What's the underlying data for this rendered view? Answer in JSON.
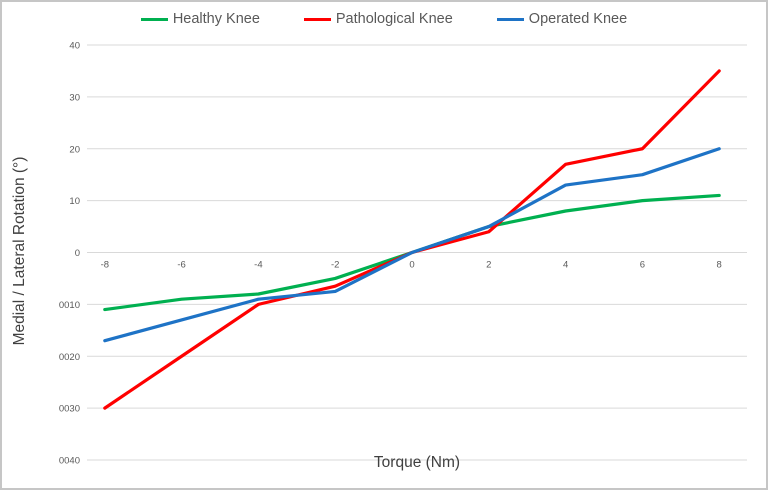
{
  "chart_data": {
    "type": "line",
    "title": "",
    "xlabel": "Torque (Nm)",
    "ylabel": "Medial / Lateral Rotation (°)",
    "x": [
      -8,
      -6,
      -4,
      -2,
      0,
      2,
      4,
      6,
      8
    ],
    "x_tick_labels": [
      "-8",
      "-6",
      "-4",
      "-2",
      "0",
      "2",
      "4",
      "6",
      "8"
    ],
    "y_ticks": [
      {
        "value": 40,
        "label": "40"
      },
      {
        "value": 30,
        "label": "30"
      },
      {
        "value": 20,
        "label": "20"
      },
      {
        "value": 10,
        "label": "10"
      },
      {
        "value": 0,
        "label": "0"
      },
      {
        "value": -10,
        "label": "0010"
      },
      {
        "value": -20,
        "label": "0020"
      },
      {
        "value": -30,
        "label": "0030"
      },
      {
        "value": -40,
        "label": "0040"
      }
    ],
    "xlim": [
      -8.6,
      8.7
    ],
    "ylim": [
      -40,
      40
    ],
    "grid": "horizontal",
    "legend_position": "top",
    "series": [
      {
        "name": "Healthy Knee",
        "color": "#00B050",
        "values": [
          -11,
          -9,
          -8,
          -5,
          0,
          5,
          8,
          10,
          11
        ]
      },
      {
        "name": "Pathological Knee",
        "color": "#FF0000",
        "values": [
          -30,
          -20,
          -10,
          -6.5,
          0,
          4,
          17,
          20,
          35
        ]
      },
      {
        "name": "Operated Knee",
        "color": "#1E73C6",
        "values": [
          -17,
          -13,
          -9,
          -7.5,
          0,
          5,
          13,
          15,
          20
        ]
      }
    ]
  },
  "styles": {
    "grid_color": "#d9d9d9",
    "tick_label_color": "#595959",
    "legend_text_color": "#595959",
    "axis_title_color": "#404040",
    "frame_border_color": "#c6c6c6"
  }
}
